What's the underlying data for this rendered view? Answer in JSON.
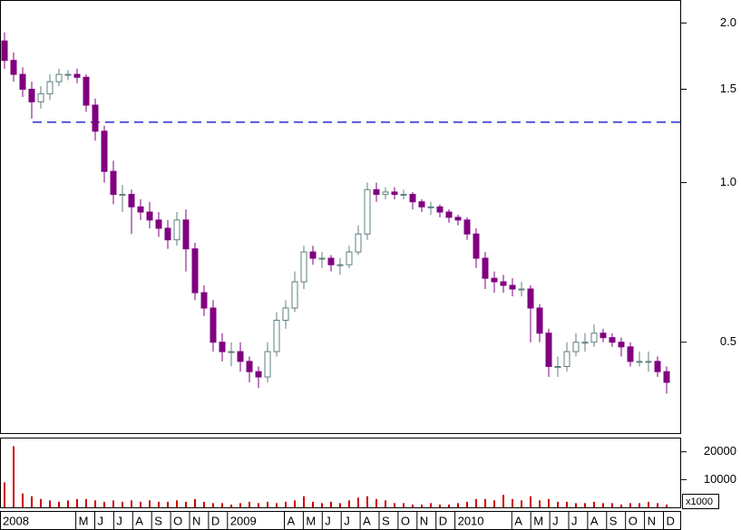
{
  "chart_data": [
    {
      "type": "candlestick",
      "log_scale": true,
      "open": [
        1.85,
        1.7,
        1.6,
        1.5,
        1.42,
        1.47,
        1.55,
        1.6,
        1.6,
        1.58,
        1.4,
        1.25,
        1.05,
        0.95,
        0.95,
        0.9,
        0.88,
        0.85,
        0.82,
        0.78,
        0.85,
        0.75,
        0.62,
        0.58,
        0.5,
        0.48,
        0.48,
        0.46,
        0.44,
        0.43,
        0.48,
        0.55,
        0.58,
        0.65,
        0.74,
        0.72,
        0.72,
        0.7,
        0.7,
        0.74,
        0.8,
        0.97,
        0.95,
        0.96,
        0.95,
        0.95,
        0.92,
        0.9,
        0.9,
        0.88,
        0.86,
        0.85,
        0.8,
        0.72,
        0.66,
        0.65,
        0.64,
        0.63,
        0.63,
        0.58,
        0.52,
        0.45,
        0.45,
        0.48,
        0.5,
        0.5,
        0.52,
        0.51,
        0.5,
        0.49,
        0.46,
        0.46,
        0.46,
        0.44
      ],
      "high": [
        1.92,
        1.76,
        1.65,
        1.55,
        1.52,
        1.6,
        1.64,
        1.63,
        1.64,
        1.6,
        1.44,
        1.28,
        1.1,
        0.99,
        0.97,
        0.93,
        0.92,
        0.88,
        0.85,
        0.88,
        0.89,
        0.77,
        0.64,
        0.6,
        0.52,
        0.5,
        0.5,
        0.47,
        0.45,
        0.5,
        0.57,
        0.6,
        0.68,
        0.76,
        0.76,
        0.74,
        0.73,
        0.72,
        0.76,
        0.83,
        1.0,
        1.0,
        0.98,
        0.98,
        0.97,
        0.96,
        0.93,
        0.92,
        0.91,
        0.89,
        0.87,
        0.86,
        0.82,
        0.74,
        0.68,
        0.67,
        0.66,
        0.65,
        0.64,
        0.59,
        0.53,
        0.47,
        0.5,
        0.52,
        0.52,
        0.54,
        0.53,
        0.52,
        0.51,
        0.5,
        0.48,
        0.48,
        0.47,
        0.45
      ],
      "low": [
        1.64,
        1.55,
        1.45,
        1.32,
        1.38,
        1.43,
        1.52,
        1.56,
        1.54,
        1.36,
        1.2,
        1.0,
        0.91,
        0.88,
        0.8,
        0.85,
        0.82,
        0.79,
        0.75,
        0.76,
        0.68,
        0.6,
        0.56,
        0.48,
        0.46,
        0.45,
        0.44,
        0.42,
        0.41,
        0.42,
        0.47,
        0.53,
        0.57,
        0.63,
        0.7,
        0.69,
        0.68,
        0.67,
        0.69,
        0.73,
        0.78,
        0.92,
        0.93,
        0.93,
        0.93,
        0.89,
        0.88,
        0.87,
        0.86,
        0.84,
        0.83,
        0.78,
        0.69,
        0.63,
        0.62,
        0.62,
        0.61,
        0.61,
        0.5,
        0.5,
        0.43,
        0.43,
        0.44,
        0.47,
        0.48,
        0.49,
        0.5,
        0.49,
        0.47,
        0.45,
        0.45,
        0.44,
        0.43,
        0.4
      ],
      "close": [
        1.7,
        1.6,
        1.5,
        1.42,
        1.47,
        1.55,
        1.6,
        1.6,
        1.58,
        1.4,
        1.25,
        1.05,
        0.95,
        0.95,
        0.9,
        0.88,
        0.85,
        0.82,
        0.78,
        0.85,
        0.75,
        0.62,
        0.58,
        0.5,
        0.48,
        0.48,
        0.46,
        0.44,
        0.43,
        0.48,
        0.55,
        0.58,
        0.65,
        0.74,
        0.72,
        0.72,
        0.7,
        0.7,
        0.74,
        0.8,
        0.97,
        0.95,
        0.96,
        0.95,
        0.95,
        0.92,
        0.9,
        0.9,
        0.88,
        0.86,
        0.85,
        0.8,
        0.72,
        0.66,
        0.65,
        0.64,
        0.63,
        0.63,
        0.58,
        0.52,
        0.45,
        0.45,
        0.48,
        0.5,
        0.5,
        0.52,
        0.51,
        0.5,
        0.49,
        0.46,
        0.46,
        0.46,
        0.44,
        0.42
      ],
      "ylim": [
        0.337,
        2.21
      ],
      "yticks": [
        0.5,
        {
          "value": 1,
          "label": "1.0"
        },
        1.5,
        {
          "value": 2,
          "label": "2.0"
        }
      ],
      "xlim": [
        -0.5,
        74.5
      ],
      "xticks": [
        {
          "value": -0.5,
          "label": "2008"
        },
        {
          "value": 7.86,
          "label": "M"
        },
        {
          "value": 9.95,
          "label": "J"
        },
        {
          "value": 12.04,
          "label": "J"
        },
        {
          "value": 14.13,
          "label": "A"
        },
        {
          "value": 16.22,
          "label": "S"
        },
        {
          "value": 18.31,
          "label": "O"
        },
        {
          "value": 20.4,
          "label": "N"
        },
        {
          "value": 22.49,
          "label": "D"
        },
        {
          "value": 24.58,
          "label": "2009"
        },
        {
          "value": 30.85,
          "label": "A"
        },
        {
          "value": 32.94,
          "label": "M"
        },
        {
          "value": 35.03,
          "label": "J"
        },
        {
          "value": 37.12,
          "label": "J"
        },
        {
          "value": 39.21,
          "label": "A"
        },
        {
          "value": 41.3,
          "label": "S"
        },
        {
          "value": 43.39,
          "label": "O"
        },
        {
          "value": 45.48,
          "label": "N"
        },
        {
          "value": 47.57,
          "label": "D"
        },
        {
          "value": 49.66,
          "label": "2010"
        },
        {
          "value": 55.93,
          "label": "A"
        },
        {
          "value": 58.02,
          "label": "M"
        },
        {
          "value": 60.11,
          "label": "J"
        },
        {
          "value": 62.2,
          "label": "J"
        },
        {
          "value": 64.29,
          "label": "A"
        },
        {
          "value": 66.38,
          "label": "S"
        },
        {
          "value": 68.47,
          "label": "O"
        },
        {
          "value": 70.56,
          "label": "N"
        },
        {
          "value": 72.65,
          "label": "D"
        }
      ],
      "reference_line": 1.3,
      "reference_line_color": "#0000cc",
      "up_color": "#5f7f7f",
      "down_color": "#800080"
    },
    {
      "type": "bar",
      "values": [
        9000,
        22000,
        5000,
        4000,
        3000,
        2500,
        2000,
        2500,
        3000,
        3000,
        2500,
        2000,
        2500,
        2000,
        2500,
        2000,
        2500,
        2000,
        2000,
        2500,
        2000,
        3000,
        2000,
        1500,
        1500,
        1000,
        1500,
        2000,
        1500,
        2000,
        1500,
        2000,
        2500,
        4000,
        2000,
        1500,
        2000,
        1500,
        2500,
        3500,
        4000,
        3000,
        2500,
        1500,
        1500,
        1000,
        1000,
        1500,
        1000,
        1000,
        1500,
        2000,
        3000,
        3000,
        2500,
        4500,
        3000,
        2500,
        4000,
        2500,
        3000,
        2000,
        2000,
        1500,
        1500,
        2000,
        1500,
        1500,
        1000,
        1500,
        1500,
        2000,
        1500,
        1000
      ],
      "ylim": [
        0,
        24800
      ],
      "yticks": [
        10000,
        20000
      ],
      "color": "#cc0000",
      "unit_label": "x1000"
    }
  ]
}
